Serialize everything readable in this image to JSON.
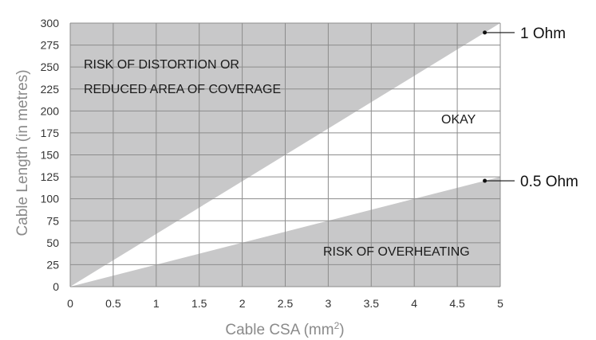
{
  "chart_data": {
    "type": "area",
    "xlabel": "Cable CSA (mm",
    "xlabel_sup": "2",
    "xlabel_close": ")",
    "ylabel": "Cable Length (in metres)",
    "xlim": [
      0,
      5
    ],
    "ylim": [
      0,
      300
    ],
    "x_ticks": [
      "0",
      "0.5",
      "1",
      "1.5",
      "2",
      "2.5",
      "3",
      "3.5",
      "4",
      "4.5",
      "5"
    ],
    "y_ticks": [
      "0",
      "25",
      "50",
      "75",
      "100",
      "125",
      "150",
      "175",
      "200",
      "225",
      "250",
      "275",
      "300"
    ],
    "grid": true,
    "series": [
      {
        "name": "1 Ohm",
        "x": [
          0,
          5
        ],
        "y": [
          0,
          300
        ]
      },
      {
        "name": "0.5 Ohm",
        "x": [
          0,
          5
        ],
        "y": [
          0,
          125
        ]
      }
    ],
    "regions": {
      "top_line1": "RISK OF DISTORTION OR",
      "top_line2": "REDUCED AREA OF COVERAGE",
      "middle": "OKAY",
      "bottom": "RISK OF OVERHEATING"
    },
    "colors": {
      "risk_fill": "#c8c8c9",
      "okay_fill": "#ffffff",
      "grid": "#8c8c8c",
      "axis_title": "#8a8a8a"
    }
  }
}
